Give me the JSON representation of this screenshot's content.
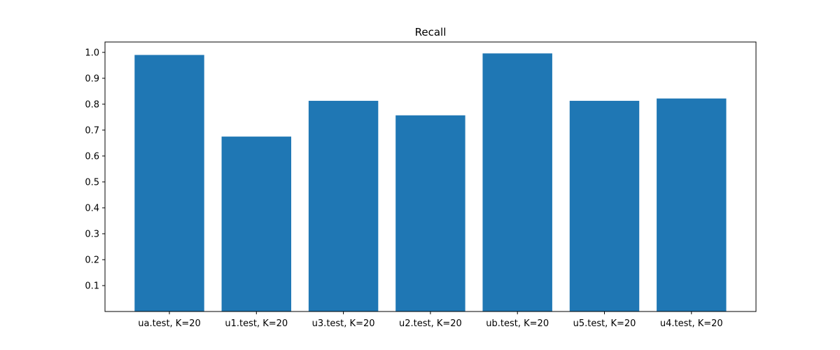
{
  "chart_data": {
    "type": "bar",
    "title": "Recall",
    "xlabel": "",
    "ylabel": "",
    "categories": [
      "ua.test, K=20",
      "u1.test, K=20",
      "u3.test, K=20",
      "u2.test, K=20",
      "ub.test, K=20",
      "u5.test, K=20",
      "u4.test, K=20"
    ],
    "values": [
      0.99,
      0.675,
      0.813,
      0.757,
      0.996,
      0.813,
      0.822
    ],
    "ylim": [
      0,
      1.04
    ],
    "yticks": [
      "0.1",
      "0.2",
      "0.3",
      "0.4",
      "0.5",
      "0.6",
      "0.7",
      "0.8",
      "0.9",
      "1.0"
    ],
    "grid": false,
    "bar_color": "#1f77b4"
  }
}
